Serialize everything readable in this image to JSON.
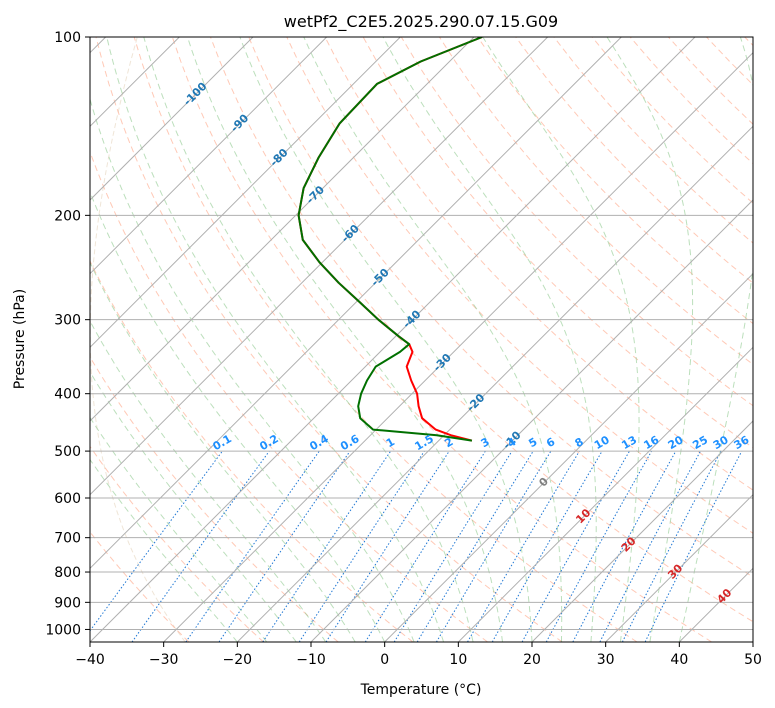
{
  "chart_data": {
    "type": "skewt",
    "title": "wetPf2_C2E5.2025.290.07.15.G09",
    "xlabel": "Temperature (°C)",
    "ylabel": "Pressure (hPa)",
    "xlim": [
      -40,
      50
    ],
    "ylim": [
      1050,
      100
    ],
    "x_ticks": [
      -40,
      -30,
      -20,
      -10,
      0,
      10,
      20,
      30,
      40,
      50
    ],
    "y_ticks": [
      100,
      200,
      300,
      400,
      500,
      600,
      700,
      800,
      900,
      1000
    ],
    "temperature": {
      "name": "Temperature",
      "color": "#ff0000",
      "points": [
        [
          100,
          -68.9
        ],
        [
          110,
          -73.9
        ],
        [
          120,
          -76.8
        ],
        [
          140,
          -76.5
        ],
        [
          160,
          -74.7
        ],
        [
          180,
          -72.6
        ],
        [
          200,
          -69.6
        ],
        [
          220,
          -65.7
        ],
        [
          240,
          -60.4
        ],
        [
          260,
          -55.0
        ],
        [
          280,
          -49.6
        ],
        [
          300,
          -44.6
        ],
        [
          320,
          -39.6
        ],
        [
          330,
          -37.1
        ],
        [
          340,
          -35.6
        ],
        [
          360,
          -34.4
        ],
        [
          380,
          -31.9
        ],
        [
          400,
          -29.3
        ],
        [
          420,
          -27.4
        ],
        [
          440,
          -25.3
        ],
        [
          460,
          -21.9
        ],
        [
          470,
          -19.1
        ],
        [
          480,
          -15.5
        ]
      ]
    },
    "dewpoint": {
      "name": "Dewpoint",
      "color": "#007000",
      "points": [
        [
          100,
          -68.9
        ],
        [
          110,
          -73.9
        ],
        [
          120,
          -76.8
        ],
        [
          140,
          -76.5
        ],
        [
          160,
          -74.7
        ],
        [
          180,
          -72.6
        ],
        [
          200,
          -69.6
        ],
        [
          220,
          -65.7
        ],
        [
          240,
          -60.4
        ],
        [
          260,
          -55.0
        ],
        [
          280,
          -49.6
        ],
        [
          300,
          -44.6
        ],
        [
          320,
          -39.6
        ],
        [
          330,
          -37.1
        ],
        [
          340,
          -37.3
        ],
        [
          360,
          -38.6
        ],
        [
          380,
          -37.9
        ],
        [
          400,
          -36.9
        ],
        [
          420,
          -35.6
        ],
        [
          440,
          -33.7
        ],
        [
          460,
          -30.4
        ],
        [
          470,
          -21.0
        ],
        [
          480,
          -15.5
        ]
      ]
    },
    "isotherm_labels": [
      "-100",
      "-90",
      "-80",
      "-70",
      "-60",
      "-50",
      "-40",
      "-30",
      "-20",
      "-10",
      "0",
      "10",
      "20",
      "30",
      "40"
    ],
    "isotherm_values": [
      -100,
      -90,
      -80,
      -70,
      -60,
      -50,
      -40,
      -30,
      -20,
      -10,
      0,
      10,
      20,
      30,
      40
    ],
    "mixing_ratio_labels": [
      "0.1",
      "0.2",
      "0.4",
      "0.6",
      "1",
      "1.5",
      "2",
      "3",
      "4",
      "5",
      "6",
      "8",
      "10",
      "13",
      "16",
      "20",
      "25",
      "30",
      "36"
    ],
    "mixing_ratio_values": [
      0.1,
      0.2,
      0.4,
      0.6,
      1,
      1.5,
      2,
      3,
      4,
      5,
      6,
      8,
      10,
      13,
      16,
      20,
      25,
      30,
      36
    ],
    "mixing_ratio_label_pressure": 500,
    "colors": {
      "grid": "#b0b0b0",
      "isotherm": "#808080",
      "dry_adiabat": "#ff9c7a",
      "moist_adiabat": "#8fc98f",
      "mixing_ratio": "#1f77d4",
      "isotherm_label_cold": "#1f77b4",
      "isotherm_label_warm": "#d62728",
      "isotherm_label_zero": "#808080",
      "mixing_ratio_label": "#1e90ff",
      "tan_curve": "#d2b48c"
    }
  }
}
